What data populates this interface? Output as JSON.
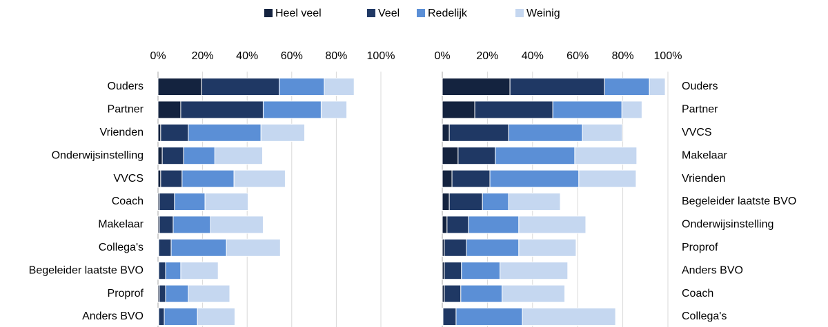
{
  "chart_data": [
    {
      "type": "stacked-barh",
      "categories": [
        "Ouders",
        "Partner",
        "Vrienden",
        "Onderwijsinstelling",
        "VVCS",
        "Coach",
        "Makelaar",
        "Collega's",
        "Begeleider laatste BVO",
        "Proprof",
        "Anders BVO"
      ],
      "series": [
        {
          "name": "Heel veel",
          "color": "#14233f",
          "values": [
            19.6,
            10.2,
            1.2,
            1.9,
            1.2,
            0.6,
            0.6,
            0.3,
            0.3,
            0.6,
            0.3
          ]
        },
        {
          "name": "Veel",
          "color": "#1f3864",
          "values": [
            34.8,
            37.0,
            12.4,
            9.6,
            9.6,
            6.8,
            6.2,
            5.6,
            3.1,
            2.8,
            2.5
          ]
        },
        {
          "name": "Redelijk",
          "color": "#5b8fd6",
          "values": [
            20.2,
            26.0,
            32.6,
            14.0,
            23.3,
            13.7,
            16.8,
            24.8,
            6.8,
            10.2,
            14.9
          ]
        },
        {
          "name": "Weinig",
          "color": "#c5d7f0",
          "values": [
            13.4,
            11.5,
            19.6,
            21.4,
            23.0,
            19.3,
            23.6,
            24.2,
            16.8,
            18.6,
            16.8
          ]
        }
      ],
      "xlim": [
        0,
        100
      ],
      "xticks": [
        {
          "value": 0,
          "label": "0%"
        },
        {
          "value": 20,
          "label": "20%"
        },
        {
          "value": 40,
          "label": "40%"
        },
        {
          "value": 60,
          "label": "60%"
        },
        {
          "value": 80,
          "label": "80%"
        },
        {
          "value": 100,
          "label": "100%"
        }
      ],
      "grid": true
    },
    {
      "type": "stacked-barh",
      "categories": [
        "Ouders",
        "Partner",
        "VVCS",
        "Makelaar",
        "Vrienden",
        "Begeleider laatste BVO",
        "Onderwijsinstelling",
        "Proprof",
        "Anders BVO",
        "Coach",
        "Collega's"
      ],
      "series": [
        {
          "color": "#14233f",
          "values": [
            30.0,
            14.4,
            3.1,
            7.0,
            4.3,
            3.1,
            2.1,
            0.9,
            0.9,
            0.9,
            0.3
          ]
        },
        {
          "color": "#1f3864",
          "values": [
            41.9,
            34.6,
            26.3,
            16.5,
            16.8,
            14.7,
            9.5,
            9.8,
            7.6,
            7.3,
            5.8
          ]
        },
        {
          "color": "#5b8fd6",
          "values": [
            19.9,
            30.6,
            32.7,
            35.2,
            39.4,
            11.6,
            22.3,
            23.2,
            17.1,
            18.3,
            29.4
          ]
        },
        {
          "color": "#c5d7f0",
          "values": [
            7.0,
            8.9,
            17.7,
            27.5,
            25.4,
            22.9,
            29.7,
            25.4,
            30.0,
            27.8,
            41.3
          ]
        }
      ],
      "xlim": [
        0,
        100
      ],
      "xticks": [
        {
          "value": 0,
          "label": "0%"
        },
        {
          "value": 20,
          "label": "20%"
        },
        {
          "value": 40,
          "label": "40%"
        },
        {
          "value": 60,
          "label": "60%"
        },
        {
          "value": 80,
          "label": "80%"
        },
        {
          "value": 100,
          "label": "100%"
        }
      ],
      "grid": true
    }
  ]
}
